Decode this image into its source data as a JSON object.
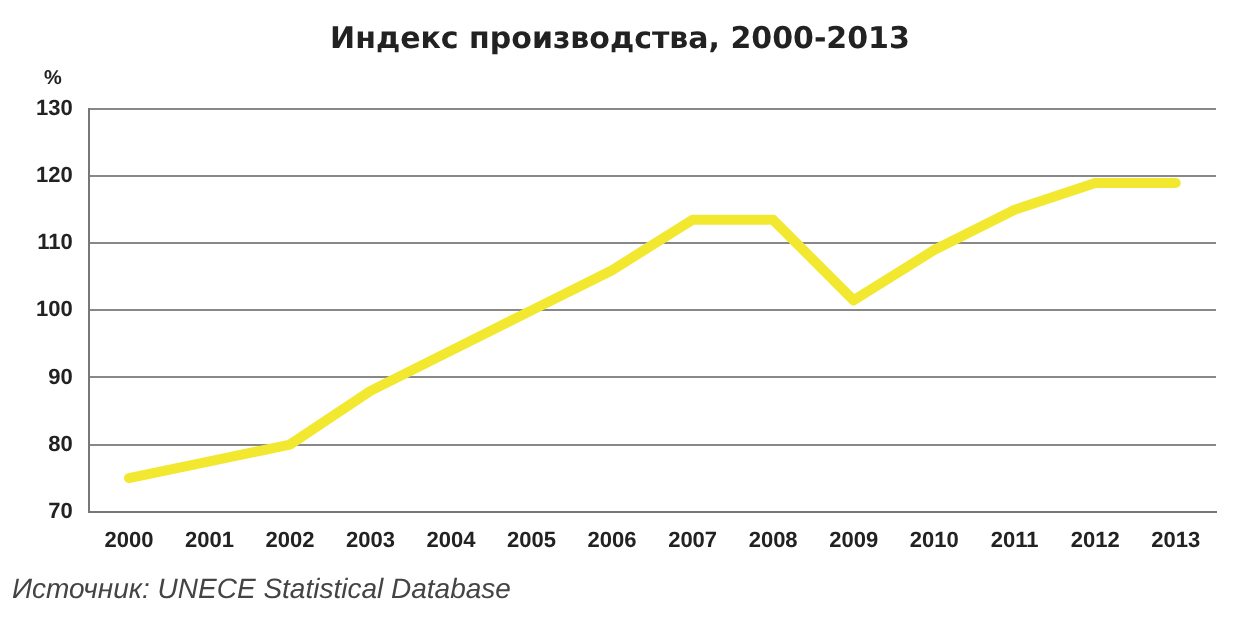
{
  "chart_data": {
    "type": "line",
    "title": "Индекс производства, 2000-2013",
    "ylabel": "%",
    "categories": [
      "2000",
      "2001",
      "2002",
      "2003",
      "2004",
      "2005",
      "2006",
      "2007",
      "2008",
      "2009",
      "2010",
      "2011",
      "2012",
      "2013"
    ],
    "series": [
      {
        "color": "#f2e830",
        "values": [
          75,
          77.5,
          80,
          88,
          94,
          100,
          106,
          113.5,
          113.5,
          101.5,
          109,
          115,
          119,
          119
        ]
      }
    ],
    "ylim": [
      70,
      130
    ],
    "yticks": [
      70,
      80,
      90,
      100,
      110,
      120,
      130
    ],
    "grid": "y",
    "legend": false,
    "annotations": [
      "Источник: UNECE Statistical Database"
    ]
  }
}
